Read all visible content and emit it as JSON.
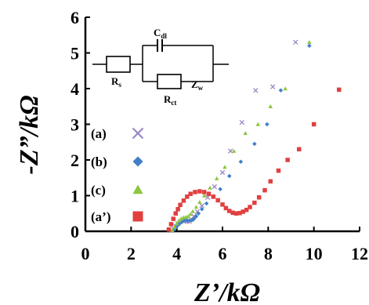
{
  "chart_data": {
    "type": "scatter",
    "xlabel": "Z’/kΩ",
    "ylabel": "-Z”/kΩ",
    "xlim": [
      0,
      12
    ],
    "ylim": [
      0,
      6
    ],
    "xticks": [
      "0",
      "2",
      "4",
      "6",
      "8",
      "10",
      "12"
    ],
    "yticks": [
      "0",
      "1",
      "2",
      "3",
      "4",
      "5",
      "6"
    ],
    "grid": false,
    "legend_position": "left",
    "circuit": {
      "rs": "R",
      "rs_sub": "s",
      "cdl": "C",
      "cdl_sub": "dl",
      "rct": "R",
      "rct_sub": "ct",
      "zw": "Z",
      "zw_sub": "w"
    },
    "series": [
      {
        "name": "(a)",
        "marker": "x",
        "color": "#9a86c4",
        "x": [
          3.75,
          3.85,
          3.95,
          4.05,
          4.15,
          4.25,
          4.35,
          4.45,
          4.55,
          4.65,
          4.75,
          4.9,
          5.1,
          5.35,
          5.65,
          6.0,
          6.35,
          6.85,
          7.45,
          8.2,
          9.2
        ],
        "y": [
          0.02,
          0.08,
          0.15,
          0.22,
          0.27,
          0.3,
          0.29,
          0.27,
          0.28,
          0.33,
          0.42,
          0.55,
          0.72,
          0.95,
          1.25,
          1.65,
          2.25,
          3.05,
          3.95,
          4.05,
          5.3
        ]
      },
      {
        "name": "(b)",
        "marker": "diamond",
        "color": "#3f7ec8",
        "x": [
          3.85,
          3.95,
          4.05,
          4.15,
          4.25,
          4.35,
          4.45,
          4.55,
          4.65,
          4.75,
          4.85,
          4.95,
          5.1,
          5.3,
          5.6,
          5.9,
          6.3,
          6.8,
          7.4,
          7.95,
          8.55,
          9.8
        ],
        "y": [
          0.03,
          0.1,
          0.17,
          0.23,
          0.28,
          0.3,
          0.31,
          0.3,
          0.31,
          0.35,
          0.42,
          0.5,
          0.62,
          0.78,
          0.98,
          1.18,
          1.55,
          1.95,
          2.45,
          3.0,
          3.95,
          5.2
        ]
      },
      {
        "name": "(c)",
        "marker": "triangle",
        "color": "#8cc63f",
        "x": [
          3.8,
          3.9,
          4.0,
          4.1,
          4.2,
          4.3,
          4.4,
          4.5,
          4.6,
          4.7,
          4.85,
          5.0,
          5.2,
          5.45,
          5.75,
          6.1,
          6.5,
          7.0,
          7.55,
          8.1,
          8.75,
          9.8
        ],
        "y": [
          0.03,
          0.12,
          0.22,
          0.3,
          0.36,
          0.39,
          0.4,
          0.42,
          0.48,
          0.56,
          0.68,
          0.82,
          1.0,
          1.22,
          1.48,
          1.8,
          2.25,
          2.75,
          3.0,
          3.5,
          4.0,
          5.3
        ]
      },
      {
        "name": "(a’)",
        "marker": "square",
        "color": "#e04040",
        "x": [
          3.65,
          3.75,
          3.85,
          3.95,
          4.05,
          4.15,
          4.3,
          4.45,
          4.6,
          4.8,
          5.0,
          5.2,
          5.4,
          5.6,
          5.8,
          6.0,
          6.15,
          6.3,
          6.45,
          6.6,
          6.75,
          6.9,
          7.05,
          7.2,
          7.4,
          7.6,
          7.85,
          8.1,
          8.45,
          8.85,
          9.35,
          10.0,
          11.1
        ],
        "y": [
          0.05,
          0.2,
          0.35,
          0.5,
          0.62,
          0.74,
          0.86,
          0.97,
          1.05,
          1.1,
          1.12,
          1.1,
          1.05,
          0.97,
          0.87,
          0.75,
          0.65,
          0.57,
          0.52,
          0.5,
          0.51,
          0.55,
          0.6,
          0.68,
          0.8,
          0.95,
          1.15,
          1.4,
          1.7,
          2.0,
          2.3,
          3.0,
          3.97
        ]
      }
    ]
  }
}
